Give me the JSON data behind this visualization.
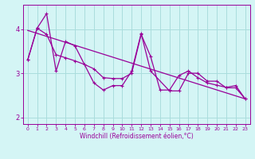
{
  "xlabel": "Windchill (Refroidissement éolien,°C)",
  "x_ticks": [
    0,
    1,
    2,
    3,
    4,
    5,
    6,
    7,
    8,
    9,
    10,
    11,
    12,
    13,
    14,
    15,
    16,
    17,
    18,
    19,
    20,
    21,
    22,
    23
  ],
  "xlim": [
    -0.5,
    23.5
  ],
  "ylim": [
    1.85,
    4.55
  ],
  "yticks": [
    2,
    3,
    4
  ],
  "bg_color": "#d4f5f5",
  "line_color": "#990099",
  "grid_color": "#aadddd",
  "trend_x": [
    0,
    23
  ],
  "trend_y": [
    3.97,
    2.42
  ],
  "line1_x": [
    0,
    1,
    2,
    3,
    4,
    5,
    7,
    8,
    9,
    10,
    11,
    12,
    13,
    15,
    16,
    17,
    18,
    19,
    20,
    21,
    22,
    23
  ],
  "line1_y": [
    3.3,
    4.02,
    4.35,
    3.05,
    3.72,
    3.62,
    2.78,
    2.62,
    2.72,
    2.72,
    3.05,
    3.9,
    3.05,
    2.6,
    2.6,
    3.0,
    3.0,
    2.82,
    2.82,
    2.67,
    2.67,
    2.42
  ],
  "line2_x": [
    0,
    1,
    2,
    3,
    4,
    5,
    6,
    7,
    8,
    9,
    10,
    11,
    12,
    13,
    14,
    15,
    16,
    17,
    18,
    19,
    20,
    21,
    22,
    23
  ],
  "line2_y": [
    3.3,
    4.02,
    3.88,
    3.42,
    3.35,
    3.28,
    3.2,
    3.1,
    2.9,
    2.88,
    2.88,
    3.0,
    3.88,
    3.38,
    2.62,
    2.62,
    2.95,
    3.05,
    2.9,
    2.78,
    2.73,
    2.68,
    2.72,
    2.42
  ]
}
